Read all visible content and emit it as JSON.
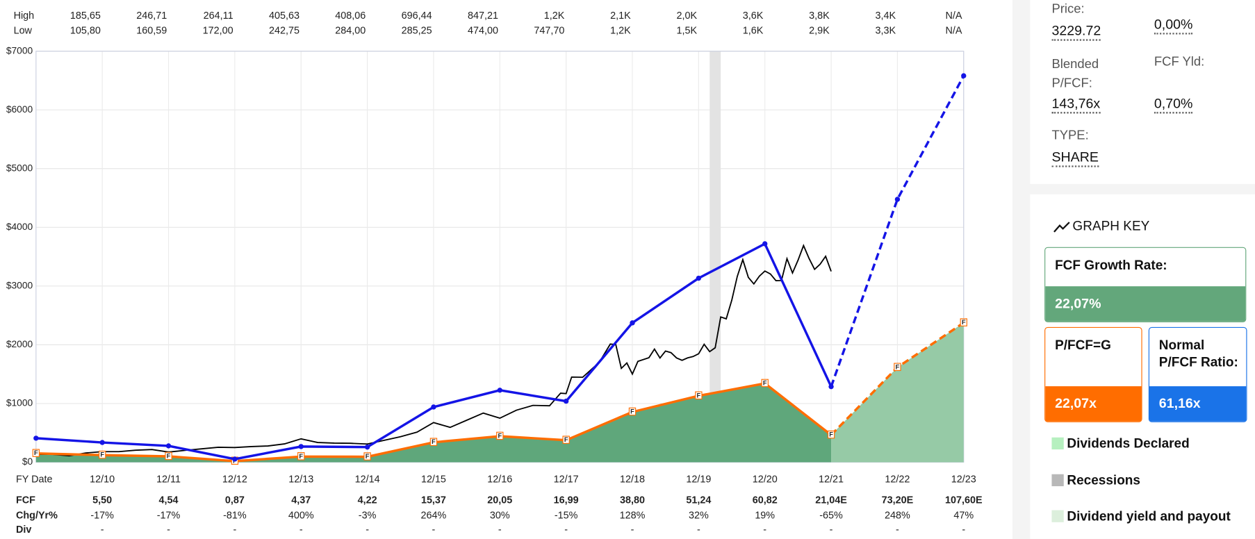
{
  "chart_data": {
    "type": "line",
    "ylim": [
      0,
      7000
    ],
    "yticks": [
      {
        "value": 0,
        "label": "$0"
      },
      {
        "value": 1000,
        "label": "$1000"
      },
      {
        "value": 2000,
        "label": "$2000"
      },
      {
        "value": 3000,
        "label": "$3000"
      },
      {
        "value": 4000,
        "label": "$4000"
      },
      {
        "value": 5000,
        "label": "$5000"
      },
      {
        "value": 6000,
        "label": "$6000"
      },
      {
        "value": 7000,
        "label": "$7000"
      }
    ],
    "grid": true,
    "x_label": "FY Date",
    "categories": [
      "12/10",
      "12/11",
      "12/12",
      "12/13",
      "12/14",
      "12/15",
      "12/16",
      "12/17",
      "12/18",
      "12/19",
      "12/20",
      "12/21",
      "12/22",
      "12/23"
    ],
    "price_table": [
      {
        "label": "High",
        "values": [
          "185,65",
          "246,71",
          "264,11",
          "405,63",
          "408,06",
          "696,44",
          "847,21",
          "1,2K",
          "2,1K",
          "2,0K",
          "3,6K",
          "3,8K",
          "3,4K",
          "N/A"
        ]
      },
      {
        "label": "Low",
        "values": [
          "105,80",
          "160,59",
          "172,00",
          "242,75",
          "284,00",
          "285,25",
          "474,00",
          "747,70",
          "1,2K",
          "1,5K",
          "1,6K",
          "2,9K",
          "3,3K",
          "N/A"
        ]
      }
    ],
    "fcf_table": [
      {
        "label": "FCF",
        "values": [
          "5,50",
          "4,54",
          "0,87",
          "4,37",
          "4,22",
          "15,37",
          "20,05",
          "16,99",
          "38,80",
          "51,24",
          "60,82",
          "21,04E",
          "73,20E",
          "107,60E"
        ]
      },
      {
        "label": "Chg/Yr%",
        "values": [
          "-17%",
          "-17%",
          "-81%",
          "400%",
          "-3%",
          "264%",
          "30%",
          "-15%",
          "128%",
          "32%",
          "19%",
          "-65%",
          "248%",
          "47%"
        ]
      },
      {
        "label": "Div",
        "values": [
          "-",
          "-",
          "-",
          "-",
          "-",
          "-",
          "-",
          "-",
          "-",
          "-",
          "-",
          "-",
          "-",
          "-"
        ]
      }
    ],
    "negative_color": "#e53935",
    "series": [
      {
        "color": "#ff6d00",
        "area_color": "#5fa77b",
        "estimate_area_color": "#96caa6",
        "marker_label": "F",
        "x": [
          "12/09",
          "12/10",
          "12/11",
          "12/12",
          "12/13",
          "12/14",
          "12/15",
          "12/16",
          "12/17",
          "12/18",
          "12/19",
          "12/20",
          "12/21",
          "12/22",
          "12/23"
        ],
        "values": [
          150,
          121,
          100,
          19,
          96,
          93,
          339,
          443,
          375,
          856,
          1131,
          1342,
          464,
          1616,
          2375
        ]
      },
      {
        "color": "#1414e6",
        "x": [
          "12/09",
          "12/10",
          "12/11",
          "12/12",
          "12/13",
          "12/14",
          "12/15",
          "12/16",
          "12/17",
          "12/18",
          "12/19",
          "12/20",
          "12/21",
          "12/22",
          "12/23"
        ],
        "values": [
          409,
          336,
          278,
          53,
          267,
          258,
          940,
          1226,
          1039,
          2373,
          3134,
          3720,
          1287,
          4477,
          6581
        ]
      }
    ],
    "price": {
      "color": "#000000",
      "x": [
        "12/09",
        "03/10",
        "06/10",
        "09/10",
        "12/10",
        "03/11",
        "06/11",
        "09/11",
        "12/11",
        "03/12",
        "06/12",
        "09/12",
        "12/12",
        "03/13",
        "06/13",
        "09/13",
        "12/13",
        "03/14",
        "06/14",
        "09/14",
        "12/14",
        "03/15",
        "06/15",
        "09/15",
        "12/15",
        "03/16",
        "06/16",
        "09/16",
        "12/16",
        "03/17",
        "06/17",
        "09/17",
        "11/17",
        "12/17",
        "01/18",
        "03/18",
        "06/18",
        "08/18",
        "09/18",
        "10/18",
        "11/18",
        "12/18",
        "01/19",
        "03/19",
        "04/19",
        "05/19",
        "06/19",
        "07/19",
        "08/19",
        "09/19",
        "10/19",
        "11/19",
        "12/19",
        "01/20",
        "02/20",
        "03/20",
        "04/20",
        "05/20",
        "06/20",
        "07/20",
        "08/20",
        "09/20",
        "10/20",
        "11/20",
        "12/20",
        "01/21",
        "02/21",
        "03/21",
        "04/21",
        "05/21",
        "06/21",
        "07/21",
        "08/21",
        "09/21",
        "10/21",
        "11/21",
        "12/21"
      ],
      "values": [
        135,
        135,
        110,
        157,
        180,
        180,
        204,
        216,
        173,
        202,
        228,
        254,
        250,
        266,
        277,
        312,
        398,
        336,
        325,
        322,
        310,
        372,
        434,
        512,
        675,
        593,
        715,
        837,
        750,
        886,
        968,
        961,
        1176,
        1169,
        1450,
        1447,
        1700,
        2012,
        2003,
        1598,
        1690,
        1501,
        1718,
        1780,
        1926,
        1775,
        1893,
        1866,
        1776,
        1735,
        1777,
        1800,
        1847,
        2008,
        1883,
        1949,
        2474,
        2442,
        2758,
        3164,
        3450,
        3148,
        3036,
        3168,
        3256,
        3206,
        3092,
        3094,
        3467,
        3223,
        3440,
        3690,
        3470,
        3285,
        3372,
        3507,
        3250
      ]
    },
    "recessions": [
      {
        "color": "#e3e3e3",
        "x": [
          "02/20",
          "04/20"
        ]
      }
    ]
  },
  "panel": {
    "price_label": "Price:",
    "price": "3229.72",
    "change": "0,00%",
    "blended_label": "Blended P/FCF:",
    "blended": "143,76x",
    "yield_label": "FCF Yld:",
    "yield": "0,70%",
    "type_label": "TYPE:",
    "type": "SHARE",
    "key_title": "GRAPH KEY",
    "key": [
      {
        "label": "FCF Growth Rate:",
        "value": "22,07%",
        "color": "#63a77b"
      },
      {
        "label": "P/FCF=G",
        "value": "22,07x",
        "color": "#ff6d00"
      },
      {
        "label": "Normal P/FCF Ratio:",
        "value": "61,16x",
        "color": "#1a73e8"
      }
    ],
    "legend": [
      {
        "label": "Dividends Declared",
        "color": "#b6f0bf"
      },
      {
        "label": "Recessions",
        "color": "#b8b8b8"
      },
      {
        "label": "Dividend yield and payout",
        "color": "#dcefdc"
      }
    ]
  }
}
